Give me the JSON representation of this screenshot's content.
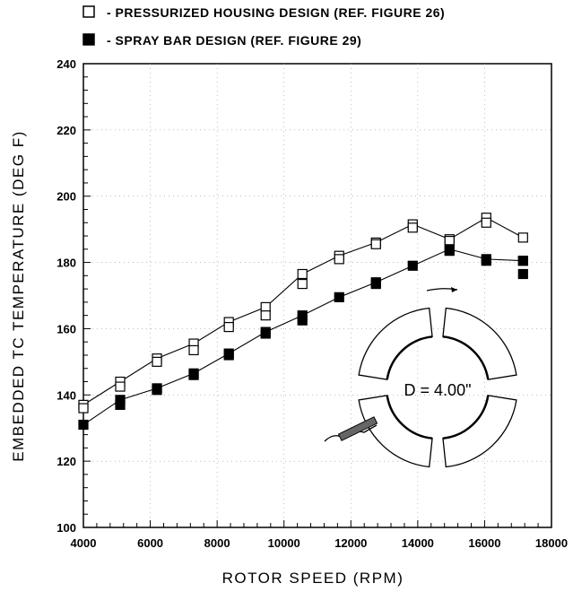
{
  "chart_data": {
    "type": "line",
    "xlabel": "ROTOR SPEED (RPM)",
    "ylabel": "EMBEDDED TC TEMPERATURE (DEG F)",
    "xlim": [
      4000,
      18000
    ],
    "ylim": [
      100,
      240
    ],
    "x_ticks": [
      "4000",
      "6000",
      "8000",
      "10000",
      "12000",
      "14000",
      "16000",
      "18000"
    ],
    "y_ticks": [
      "100",
      "120",
      "140",
      "160",
      "180",
      "200",
      "220",
      "240"
    ],
    "grid": true,
    "legend_position": "top",
    "series": [
      {
        "name": "- PRESSURIZED HOUSING DESIGN (REF. FIGURE 26)",
        "marker": "open-square",
        "x": [
          4000,
          5100,
          6200,
          7300,
          8350,
          9450,
          10550,
          11650,
          12750,
          13850,
          14950,
          16050,
          17150
        ],
        "y": [
          137,
          144,
          151,
          155.5,
          162,
          166.5,
          176.5,
          182,
          186,
          191.5,
          187,
          193.5,
          187.5
        ],
        "extra_points": [
          {
            "x": 4000,
            "y": 136
          },
          {
            "x": 5100,
            "y": 142.5
          },
          {
            "x": 6200,
            "y": 150
          },
          {
            "x": 7300,
            "y": 153.5
          },
          {
            "x": 8350,
            "y": 160.5
          },
          {
            "x": 9450,
            "y": 164
          },
          {
            "x": 10550,
            "y": 173.5
          },
          {
            "x": 11650,
            "y": 181
          },
          {
            "x": 12750,
            "y": 185.5
          },
          {
            "x": 13850,
            "y": 190.5
          },
          {
            "x": 14950,
            "y": 186.5
          },
          {
            "x": 16050,
            "y": 192
          },
          {
            "x": 17150,
            "y": 180.5
          }
        ]
      },
      {
        "name": "- SPRAY BAR DESIGN (REF. FIGURE 29)",
        "marker": "filled-square",
        "x": [
          4000,
          5100,
          6200,
          7300,
          8350,
          9450,
          10550,
          11650,
          12750,
          13850,
          14950,
          16050,
          17150
        ],
        "y": [
          131,
          138.5,
          142,
          146.5,
          152.5,
          159,
          164,
          169.5,
          174,
          179,
          184,
          181,
          180.5
        ],
        "extra_points": [
          {
            "x": 5100,
            "y": 137
          },
          {
            "x": 6200,
            "y": 141.5
          },
          {
            "x": 7300,
            "y": 146
          },
          {
            "x": 8350,
            "y": 152
          },
          {
            "x": 9450,
            "y": 158.5
          },
          {
            "x": 10550,
            "y": 162.5
          },
          {
            "x": 12750,
            "y": 173.5
          },
          {
            "x": 14950,
            "y": 183.5
          },
          {
            "x": 16050,
            "y": 180.5
          },
          {
            "x": 17150,
            "y": 176.5
          }
        ]
      }
    ],
    "inset": {
      "label": "D = 4.00\"",
      "description_icon": "segmented-ring-bearing-with-thermocouple-wire"
    }
  }
}
